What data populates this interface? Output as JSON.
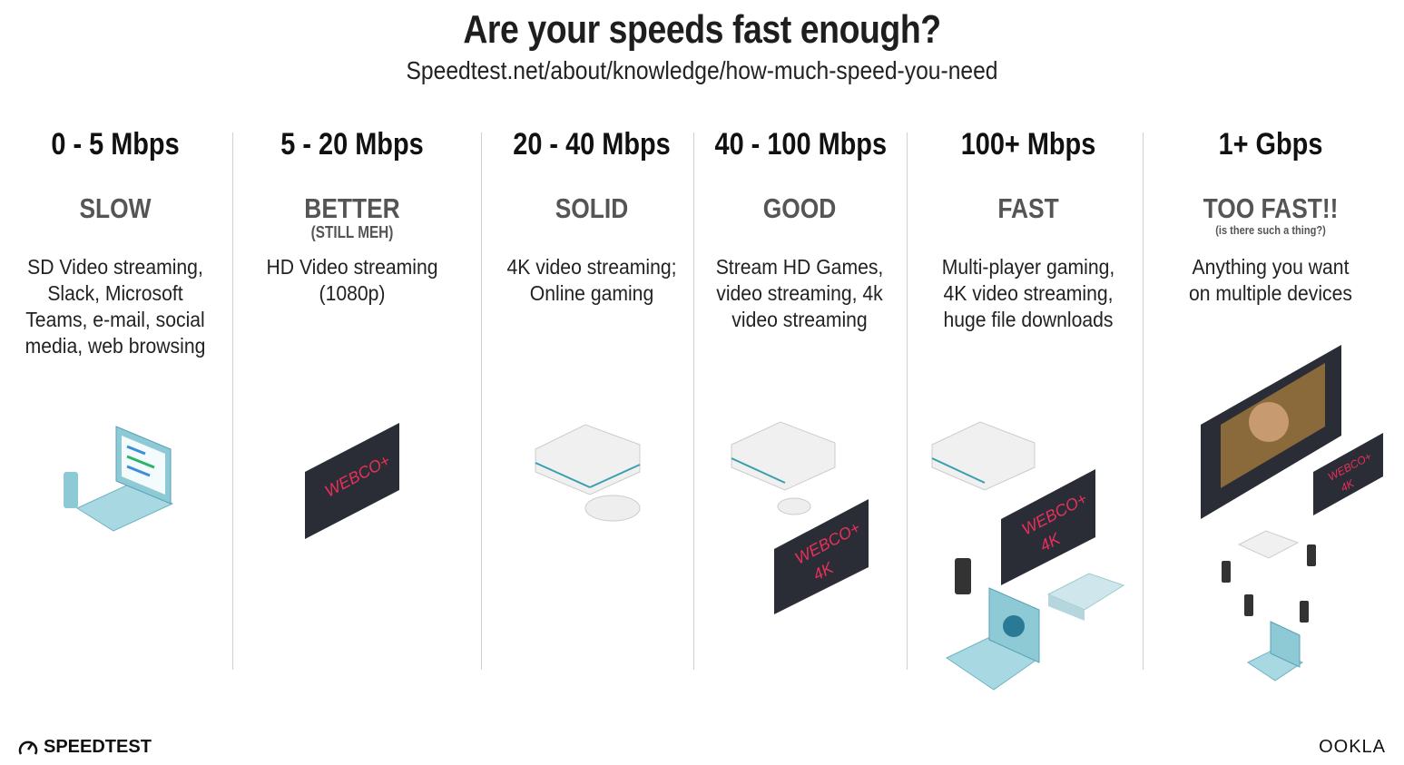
{
  "header": {
    "title": "Are your speeds fast enough?",
    "subtitle": "Speedtest.net/about/knowledge/how-much-speed-you-need"
  },
  "columns": [
    {
      "speed": "0 - 5 Mbps",
      "rating": "SLOW",
      "note": "",
      "desc": [
        "SD Video streaming,",
        "Slack, Microsoft",
        "Teams, e-mail, social",
        "media, web browsing"
      ]
    },
    {
      "speed": "5 - 20 Mbps",
      "rating": "BETTER",
      "note": "(STILL MEH)",
      "desc": [
        "HD Video streaming",
        "(1080p)"
      ]
    },
    {
      "speed": "20 - 40 Mbps",
      "rating": "SOLID",
      "note": "",
      "desc": [
        "4K video streaming;",
        "Online gaming"
      ]
    },
    {
      "speed": "40 - 100 Mbps",
      "rating": "GOOD",
      "note": "",
      "desc": [
        "Stream HD Games,",
        "video streaming, 4k",
        "video streaming"
      ]
    },
    {
      "speed": "100+ Mbps",
      "rating": "FAST",
      "note": "",
      "desc": [
        "Multi-player gaming,",
        "4K video streaming,",
        "huge file downloads"
      ]
    },
    {
      "speed": "1+ Gbps",
      "rating": "TOO FAST!!",
      "note": "(is there such a thing?)",
      "desc": [
        "Anything you want",
        "on multiple devices"
      ]
    }
  ],
  "tv": {
    "brand": "WEBCO+",
    "res": "4K"
  },
  "footer": {
    "left_logo": "SPEEDTEST",
    "right_logo": "OOKLA"
  },
  "colors": {
    "accent": "#e8305a",
    "laptop": "#8ec9d6",
    "tv": "#2a2d36"
  }
}
